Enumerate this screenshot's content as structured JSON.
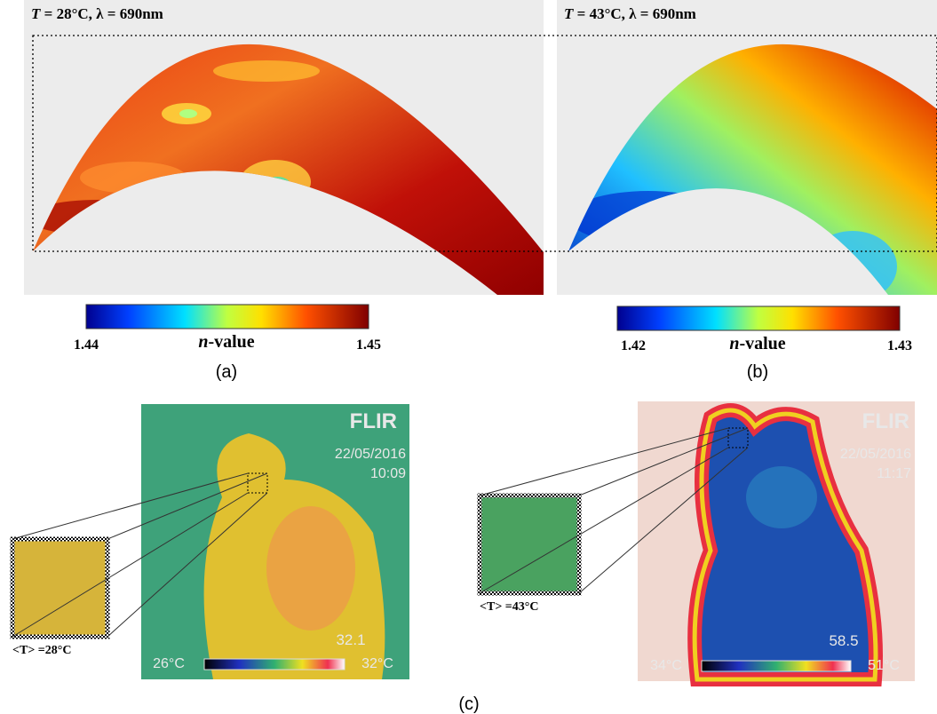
{
  "panel_a": {
    "title_var": "T",
    "title_rest": " = 28°C,  λ = 690nm",
    "colorbar_min": "1.44",
    "colorbar_max": "1.45",
    "colorbar_label_var": "n",
    "colorbar_label_rest": "-value",
    "caption": "(a)"
  },
  "panel_b": {
    "title_var": "T",
    "title_rest": " = 43°C,  λ = 690nm",
    "colorbar_min": "1.42",
    "colorbar_max": "1.43",
    "colorbar_label_var": "n",
    "colorbar_label_rest": "-value",
    "caption": "(b)"
  },
  "panel_c": {
    "caption": "(c)",
    "left": {
      "brand": "FLIR",
      "date": "22/05/2016",
      "time": "10:09",
      "spot": "32.1",
      "scale_min": "26°C",
      "scale_max": "32°C",
      "mean_label": "<T> =28°C"
    },
    "right": {
      "brand": "FLIR",
      "date": "22/05/2016",
      "time": "11:17",
      "spot": "58.5",
      "scale_min": "34°C",
      "scale_max": "51°C",
      "mean_label": "<T> =43°C"
    }
  }
}
